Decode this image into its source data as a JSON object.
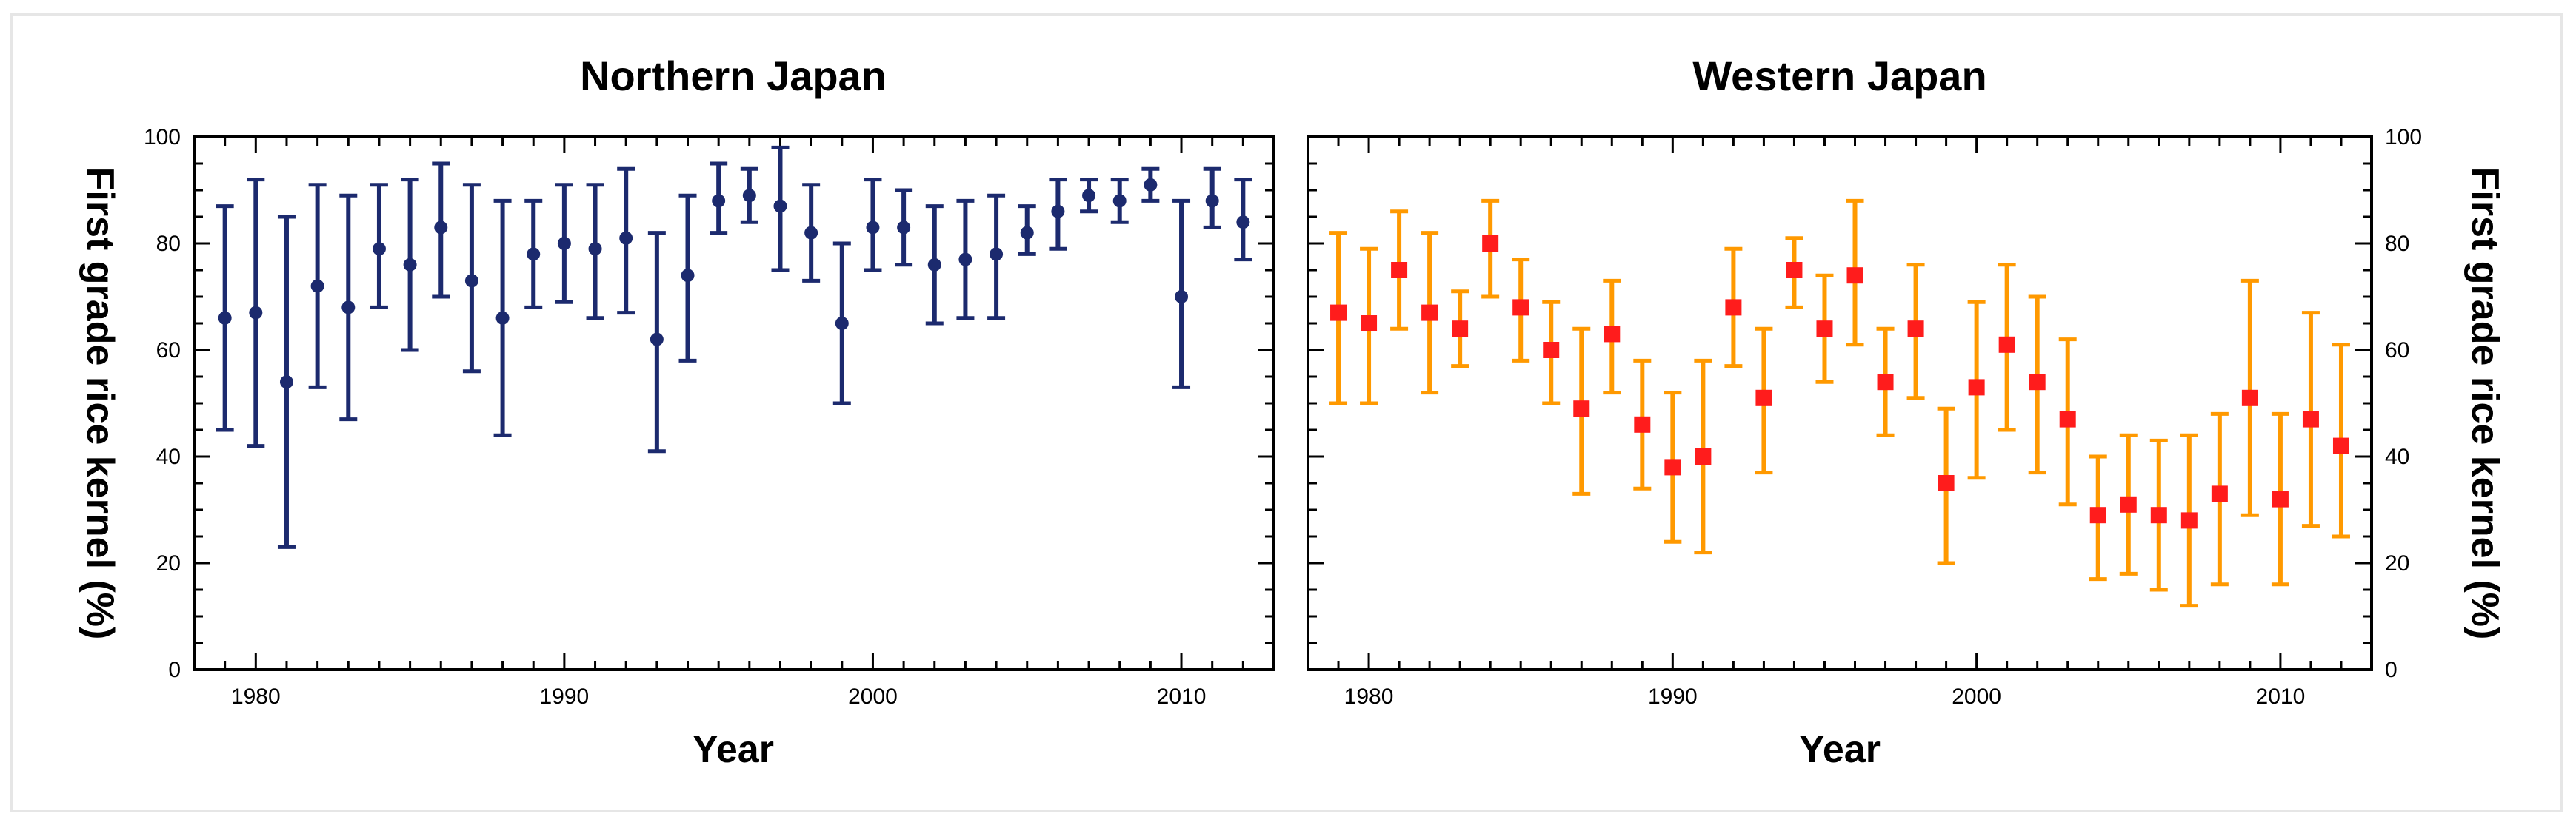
{
  "chart_data": [
    {
      "type": "scatter",
      "title": "Northern Japan",
      "xlabel": "Year",
      "ylabel": "First grade rice kernel (%)",
      "xlim": [
        1978,
        2013
      ],
      "ylim": [
        0,
        100
      ],
      "x_ticks": [
        1980,
        1990,
        2000,
        2010
      ],
      "y_ticks": [
        0,
        20,
        40,
        60,
        80,
        100
      ],
      "marker_color": "#1c2a6e",
      "series": [
        {
          "x": [
            1979,
            1980,
            1981,
            1982,
            1983,
            1984,
            1985,
            1986,
            1987,
            1988,
            1989,
            1990,
            1991,
            1992,
            1993,
            1994,
            1995,
            1996,
            1997,
            1998,
            1999,
            2000,
            2001,
            2002,
            2003,
            2004,
            2005,
            2006,
            2007,
            2008,
            2009,
            2010,
            2011,
            2012
          ],
          "y": [
            66,
            67,
            54,
            72,
            68,
            79,
            76,
            83,
            73,
            66,
            78,
            80,
            79,
            81,
            62,
            74,
            88,
            89,
            87,
            82,
            65,
            83,
            83,
            76,
            77,
            78,
            82,
            86,
            89,
            88,
            91,
            70,
            88,
            84
          ],
          "err_low": [
            45,
            42,
            23,
            53,
            47,
            68,
            60,
            70,
            56,
            44,
            68,
            69,
            66,
            67,
            41,
            58,
            82,
            84,
            75,
            73,
            50,
            75,
            76,
            65,
            66,
            66,
            78,
            79,
            86,
            84,
            88,
            53,
            83,
            77
          ],
          "err_high": [
            87,
            92,
            85,
            91,
            89,
            91,
            92,
            95,
            91,
            88,
            88,
            91,
            91,
            94,
            82,
            89,
            95,
            94,
            98,
            91,
            80,
            92,
            90,
            87,
            88,
            89,
            87,
            92,
            92,
            92,
            94,
            88,
            94,
            92
          ]
        }
      ]
    },
    {
      "type": "scatter",
      "title": "Western Japan",
      "xlabel": "Year",
      "ylabel": "First grade rice kernel (%)",
      "xlim": [
        1978,
        2013
      ],
      "ylim": [
        0,
        100
      ],
      "x_ticks": [
        1980,
        1990,
        2000,
        2010
      ],
      "y_ticks": [
        0,
        20,
        40,
        60,
        80,
        100
      ],
      "marker_color": "#ff1c1c",
      "errorbar_color": "#ff9900",
      "series": [
        {
          "x": [
            1979,
            1980,
            1981,
            1982,
            1983,
            1984,
            1985,
            1986,
            1987,
            1988,
            1989,
            1990,
            1991,
            1992,
            1993,
            1994,
            1995,
            1996,
            1997,
            1998,
            1999,
            2000,
            2001,
            2002,
            2003,
            2004,
            2005,
            2006,
            2007,
            2008,
            2009,
            2010,
            2011,
            2012
          ],
          "y": [
            67,
            65,
            75,
            67,
            64,
            80,
            68,
            60,
            49,
            63,
            46,
            38,
            40,
            68,
            51,
            75,
            64,
            74,
            54,
            64,
            35,
            53,
            61,
            54,
            47,
            29,
            31,
            29,
            28,
            33,
            51,
            32,
            47,
            42
          ],
          "err_low": [
            50,
            50,
            64,
            52,
            57,
            70,
            58,
            50,
            33,
            52,
            34,
            24,
            22,
            57,
            37,
            68,
            54,
            61,
            44,
            51,
            20,
            36,
            45,
            37,
            31,
            17,
            18,
            15,
            12,
            16,
            29,
            16,
            27,
            25
          ],
          "err_high": [
            82,
            79,
            86,
            82,
            71,
            88,
            77,
            69,
            64,
            73,
            58,
            52,
            58,
            79,
            64,
            81,
            74,
            88,
            64,
            76,
            49,
            69,
            76,
            70,
            62,
            40,
            44,
            43,
            44,
            48,
            73,
            48,
            67,
            61
          ]
        }
      ]
    }
  ]
}
